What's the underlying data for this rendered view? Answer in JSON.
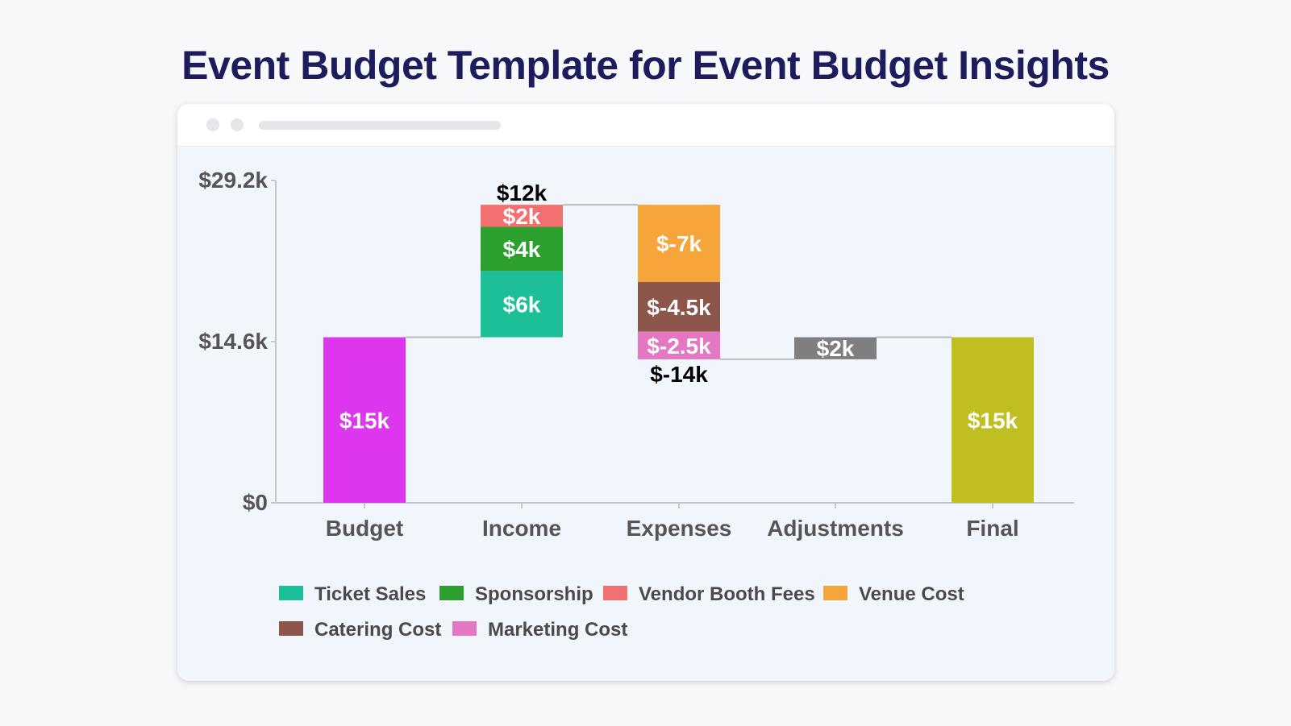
{
  "title": "Event Budget Template for Event Budget Insights",
  "chart_data": {
    "type": "bar",
    "subtype": "waterfall",
    "categories": [
      "Budget",
      "Income",
      "Expenses",
      "Adjustments",
      "Final"
    ],
    "y_ticks": [
      "$29.2k",
      "$14.6k",
      "$0"
    ],
    "ylim": [
      0,
      29200
    ],
    "grid": false,
    "legend_position": "bottom",
    "steps": [
      {
        "category": "Budget",
        "type": "total",
        "value": 15000,
        "label": "$15k",
        "segments": [
          {
            "name": "",
            "value": 15000,
            "label": "$15k",
            "color": "#dd36ee"
          }
        ]
      },
      {
        "category": "Income",
        "type": "delta",
        "total_label": "$12k",
        "segments": [
          {
            "name": "Ticket Sales",
            "value": 6000,
            "label": "$6k",
            "color": "#1dbf98"
          },
          {
            "name": "Sponsorship",
            "value": 4000,
            "label": "$4k",
            "color": "#2ca02c"
          },
          {
            "name": "Vendor Booth Fees",
            "value": 2000,
            "label": "$2k",
            "color": "#f27070"
          }
        ]
      },
      {
        "category": "Expenses",
        "type": "delta",
        "total_label": "$-14k",
        "segments": [
          {
            "name": "Venue Cost",
            "value": -7000,
            "label": "$-7k",
            "color": "#f5a53a"
          },
          {
            "name": "Catering Cost",
            "value": -4500,
            "label": "$-4.5k",
            "color": "#8c564b"
          },
          {
            "name": "Marketing Cost",
            "value": -2500,
            "label": "$-2.5k",
            "color": "#e377c2"
          }
        ]
      },
      {
        "category": "Adjustments",
        "type": "delta",
        "segments": [
          {
            "name": "",
            "value": 2000,
            "label": "$2k",
            "color": "#7f7f7f"
          }
        ]
      },
      {
        "category": "Final",
        "type": "total",
        "value": 15000,
        "label": "$15k",
        "segments": [
          {
            "name": "",
            "value": 15000,
            "label": "$15k",
            "color": "#bfbf22"
          }
        ]
      }
    ],
    "legend": [
      {
        "name": "Ticket Sales",
        "color": "#1dbf98"
      },
      {
        "name": "Sponsorship",
        "color": "#2ca02c"
      },
      {
        "name": "Vendor Booth Fees",
        "color": "#f27070"
      },
      {
        "name": "Venue Cost",
        "color": "#f5a53a"
      },
      {
        "name": "Catering Cost",
        "color": "#8c564b"
      },
      {
        "name": "Marketing Cost",
        "color": "#e377c2"
      }
    ],
    "colors": {
      "axis": "#c4c8cc",
      "tick_label": "#555555",
      "total_label": "#000000",
      "segment_label": "#ffffff",
      "connector": "#b8bcc0"
    }
  }
}
